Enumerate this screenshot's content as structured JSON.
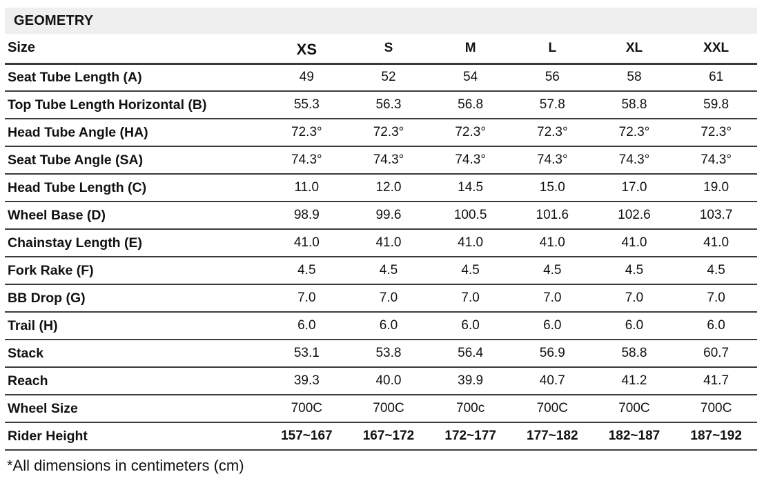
{
  "header": {
    "title": "GEOMETRY"
  },
  "table": {
    "size_label": "Size",
    "sizes": [
      "XS",
      "S",
      "M",
      "L",
      "XL",
      "XXL"
    ],
    "rows": [
      {
        "label": "Seat Tube Length (A)",
        "values": [
          "49",
          "52",
          "54",
          "56",
          "58",
          "61"
        ]
      },
      {
        "label": "Top Tube Length Horizontal (B)",
        "values": [
          "55.3",
          "56.3",
          "56.8",
          "57.8",
          "58.8",
          "59.8"
        ]
      },
      {
        "label": "Head Tube Angle (HA)",
        "values": [
          "72.3°",
          "72.3°",
          "72.3°",
          "72.3°",
          "72.3°",
          "72.3°"
        ]
      },
      {
        "label": "Seat Tube Angle (SA)",
        "values": [
          "74.3°",
          "74.3°",
          "74.3°",
          "74.3°",
          "74.3°",
          "74.3°"
        ]
      },
      {
        "label": "Head Tube Length (C)",
        "values": [
          "11.0",
          "12.0",
          "14.5",
          "15.0",
          "17.0",
          "19.0"
        ]
      },
      {
        "label": "Wheel Base (D)",
        "values": [
          "98.9",
          "99.6",
          "100.5",
          "101.6",
          "102.6",
          "103.7"
        ]
      },
      {
        "label": "Chainstay Length (E)",
        "values": [
          "41.0",
          "41.0",
          "41.0",
          "41.0",
          "41.0",
          "41.0"
        ]
      },
      {
        "label": "Fork Rake (F)",
        "values": [
          "4.5",
          "4.5",
          "4.5",
          "4.5",
          "4.5",
          "4.5"
        ]
      },
      {
        "label": "BB Drop (G)",
        "values": [
          "7.0",
          "7.0",
          "7.0",
          "7.0",
          "7.0",
          "7.0"
        ]
      },
      {
        "label": "Trail (H)",
        "values": [
          "6.0",
          "6.0",
          "6.0",
          "6.0",
          "6.0",
          "6.0"
        ]
      },
      {
        "label": "Stack",
        "values": [
          "53.1",
          "53.8",
          "56.4",
          "56.9",
          "58.8",
          "60.7"
        ]
      },
      {
        "label": "Reach",
        "values": [
          "39.3",
          "40.0",
          "39.9",
          "40.7",
          "41.2",
          "41.7"
        ]
      },
      {
        "label": "Wheel Size",
        "values": [
          "700C",
          "700C",
          "700c",
          "700C",
          "700C",
          "700C"
        ]
      },
      {
        "label": "Rider Height",
        "values": [
          "157~167",
          "167~172",
          "172~177",
          "177~182",
          "182~187",
          "187~192"
        ],
        "bold_values": true
      }
    ]
  },
  "footer": {
    "note": "*All dimensions in centimeters (cm)"
  },
  "colors": {
    "header_bg": "#efefef",
    "border": "#3a3a3a",
    "text": "#111111"
  }
}
